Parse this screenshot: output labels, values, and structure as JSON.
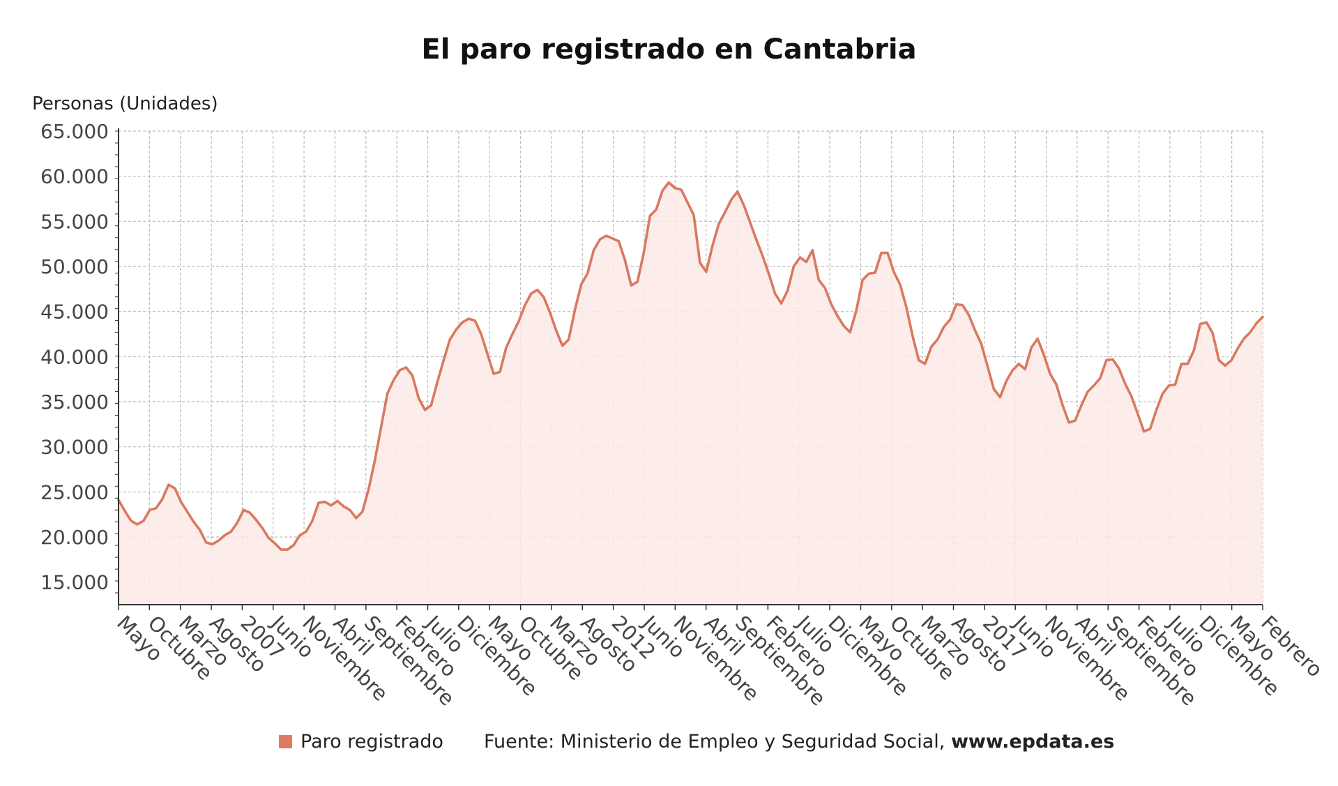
{
  "title": "El paro registrado en Cantabria",
  "colors": {
    "line": "#D9795F",
    "fill": "#FCEAE6",
    "grid": "#BBBBBB",
    "axis": "#333333"
  },
  "legend": {
    "label": "Paro registrado",
    "color": "#E07B63"
  },
  "source": {
    "prefix": "Fuente: Ministerio de Empleo y Seguridad Social, ",
    "site": "www.epdata.es"
  },
  "chart_data": {
    "type": "area",
    "title": "El paro registrado en Cantabria",
    "ylabel": "Personas (Unidades)",
    "xlabel": "",
    "ylim": [
      12500,
      65000
    ],
    "yticks": [
      15000,
      20000,
      25000,
      30000,
      35000,
      40000,
      45000,
      50000,
      55000,
      60000,
      65000
    ],
    "ytick_labels": [
      "15.000",
      "20.000",
      "25.000",
      "30.000",
      "35.000",
      "40.000",
      "45.000",
      "50.000",
      "55.000",
      "60.000",
      "65.000"
    ],
    "x_tick_labels": [
      "Mayo",
      "Octubre",
      "Marzo",
      "Agosto",
      "2007",
      "Junio",
      "Noviembre",
      "Abril",
      "Septiembre",
      "Febrero",
      "Julio",
      "Diciembre",
      "Mayo",
      "Octubre",
      "Marzo",
      "Agosto",
      "2012",
      "Junio",
      "Noviembre",
      "Abril",
      "Septiembre",
      "Febrero",
      "Julio",
      "Diciembre",
      "Mayo",
      "Octubre",
      "Marzo",
      "Agosto",
      "2017",
      "Junio",
      "Noviembre",
      "Abril",
      "Septiembre",
      "Febrero",
      "Julio",
      "Diciembre",
      "Mayo",
      "Febrero"
    ],
    "grid": true,
    "legend_position": "bottom",
    "series": [
      {
        "name": "Paro registrado",
        "start": "2005-05",
        "end": "2021-02",
        "values": [
          24100,
          22900,
          21800,
          21400,
          21800,
          23000,
          23200,
          24200,
          25800,
          25400,
          23900,
          22800,
          21700,
          20800,
          19400,
          19200,
          19600,
          20200,
          20600,
          21600,
          23000,
          22700,
          21900,
          21000,
          19900,
          19300,
          18600,
          18600,
          19100,
          20200,
          20600,
          21800,
          23800,
          23900,
          23500,
          24000,
          23400,
          23000,
          22100,
          22800,
          25300,
          28500,
          32200,
          35900,
          37400,
          38500,
          38800,
          37900,
          35400,
          34100,
          34600,
          37200,
          39600,
          41900,
          43000,
          43800,
          44200,
          44000,
          42500,
          40300,
          38100,
          38300,
          41000,
          42500,
          43900,
          45700,
          47000,
          47400,
          46600,
          44900,
          42900,
          41200,
          41900,
          45200,
          48000,
          49200,
          51800,
          53000,
          53400,
          53100,
          52800,
          50700,
          47900,
          48300,
          51500,
          55600,
          56300,
          58400,
          59300,
          58700,
          58500,
          57100,
          55700,
          50400,
          49400,
          52300,
          54700,
          56000,
          57400,
          58300,
          56800,
          54900,
          53000,
          51200,
          49200,
          47000,
          45900,
          47300,
          50000,
          51000,
          50500,
          51800,
          48500,
          47600,
          45800,
          44500,
          43400,
          42700,
          45100,
          48500,
          49200,
          49300,
          51500,
          51500,
          49400,
          48000,
          45500,
          42300,
          39600,
          39200,
          41100,
          41900,
          43300,
          44100,
          45800,
          45700,
          44600,
          42900,
          41400,
          38900,
          36400,
          35500,
          37300,
          38500,
          39200,
          38600,
          41000,
          42000,
          40200,
          38100,
          36900,
          34600,
          32700,
          32900,
          34600,
          36100,
          36800,
          37600,
          39600,
          39700,
          38700,
          37000,
          35600,
          33700,
          31700,
          32000,
          34100,
          35900,
          36800,
          36900,
          39200,
          39200,
          40700,
          43600,
          43800,
          42600,
          39600,
          39000,
          39600,
          40900,
          42000,
          42700,
          43700,
          44400
        ]
      }
    ]
  }
}
